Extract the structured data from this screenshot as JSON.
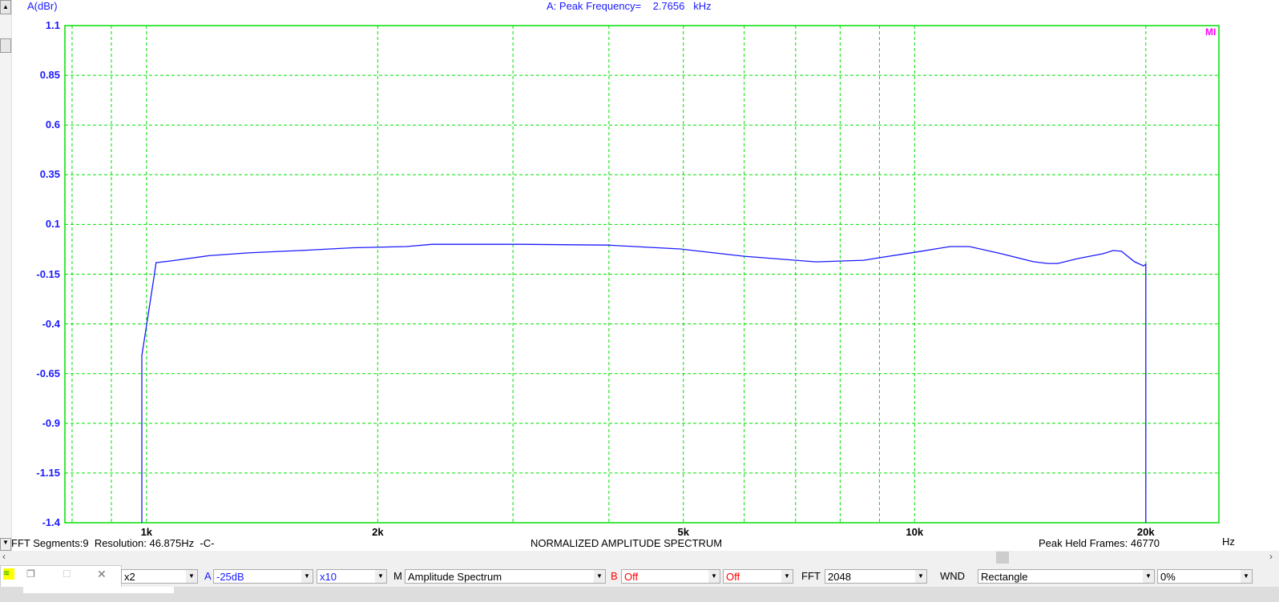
{
  "header": {
    "y_unit": "A(dBr)",
    "peak_label": "A: Peak Frequency=",
    "peak_value": "2.7656",
    "peak_unit": "kHz",
    "badge": "MI"
  },
  "status": {
    "segments": "FFT Segments:9",
    "resolution": "Resolution: 46.875Hz",
    "channel": "-C-",
    "title": "NORMALIZED AMPLITUDE SPECTRUM",
    "held": "Peak Held Frames: 46770",
    "x_unit": "Hz"
  },
  "toolbar": {
    "scale": "x2",
    "a_label": "A",
    "a_range": "-25dB",
    "a_mult": "x10",
    "m_label": "M",
    "mode": "Amplitude Spectrum",
    "b_label": "B",
    "b_value": "Off",
    "b_value2": "Off",
    "fft_label": "FFT",
    "fft_size": "2048",
    "wnd_label": "WND",
    "window": "Rectangle",
    "overlap": "0%"
  },
  "colors": {
    "grid": "#00e000",
    "trace": "#1a1aff",
    "axis_text": "#1a1aff",
    "badge": "#ff00ff",
    "alert": "#ff0000"
  },
  "chart_data": {
    "type": "line",
    "title": "NORMALIZED AMPLITUDE SPECTRUM",
    "xlabel": "Hz",
    "ylabel": "A(dBr)",
    "xscale": "log",
    "xlim": [
      783,
      24900
    ],
    "ylim": [
      -1.4,
      1.1
    ],
    "grid": true,
    "yticks": [
      "1.1",
      "0.85",
      "0.6",
      "0.35",
      "0.1",
      "-0.15",
      "-0.4",
      "-0.65",
      "-0.9",
      "-1.15",
      "-1.4"
    ],
    "xticks": [
      {
        "v": 1000,
        "label": "1k"
      },
      {
        "v": 2000,
        "label": "2k"
      },
      {
        "v": 5000,
        "label": "5k"
      },
      {
        "v": 10000,
        "label": "10k"
      },
      {
        "v": 20000,
        "label": "20k"
      }
    ],
    "xgrid": [
      800,
      900,
      1000,
      2000,
      3000,
      4000,
      5000,
      6000,
      7000,
      8000,
      9000,
      10000,
      20000
    ],
    "series": [
      {
        "x": [
          986,
          986,
          1024,
          1029,
          1072,
          1206,
          1356,
          1588,
          1857,
          2175,
          2355,
          3066,
          3990,
          4951,
          5996,
          7437,
          8585,
          9004,
          10000,
          11120,
          11790,
          12960,
          14270,
          14900,
          15360,
          16290,
          17600,
          18140,
          18590,
          19330,
          19860,
          20000,
          20000
        ],
        "y": [
          -1.4,
          -0.56,
          -0.15,
          -0.092,
          -0.084,
          -0.057,
          -0.043,
          -0.031,
          -0.017,
          -0.011,
          0.0,
          0.0,
          -0.004,
          -0.023,
          -0.06,
          -0.088,
          -0.08,
          -0.067,
          -0.04,
          -0.011,
          -0.011,
          -0.047,
          -0.087,
          -0.096,
          -0.096,
          -0.072,
          -0.047,
          -0.031,
          -0.035,
          -0.087,
          -0.108,
          -0.1,
          -1.4
        ]
      }
    ]
  }
}
